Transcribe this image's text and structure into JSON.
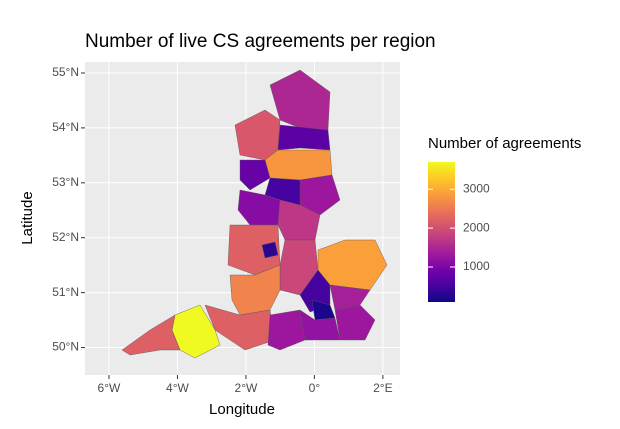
{
  "chart_data": {
    "type": "choropleth",
    "title": "Number of live CS agreements per region",
    "x_label": "Longitude",
    "y_label": "Latitude",
    "xlim": [
      -6.7,
      2.5
    ],
    "ylim": [
      49.5,
      55.2
    ],
    "xticks": [
      {
        "value": -6,
        "label": "6°W"
      },
      {
        "value": -4,
        "label": "4°W"
      },
      {
        "value": -2,
        "label": "2°W"
      },
      {
        "value": 0,
        "label": "0°"
      },
      {
        "value": 2,
        "label": "2°E"
      }
    ],
    "yticks": [
      {
        "value": 50,
        "label": "50°N"
      },
      {
        "value": 51,
        "label": "51°N"
      },
      {
        "value": 52,
        "label": "52°N"
      },
      {
        "value": 53,
        "label": "53°N"
      },
      {
        "value": 54,
        "label": "54°N"
      },
      {
        "value": 55,
        "label": "55°N"
      }
    ],
    "grid": true,
    "colormap": "plasma",
    "legend": {
      "title": "Number of agreements",
      "limits": [
        100,
        3700
      ],
      "ticks": [
        1000,
        2000,
        3000
      ]
    },
    "values": [
      1500,
      2100,
      700,
      2800,
      800,
      1300,
      500,
      1100,
      2200,
      300,
      1700,
      1900,
      2900,
      2600,
      2200,
      3700,
      2200,
      1300,
      500,
      200,
      1400,
      1200,
      1300
    ]
  }
}
